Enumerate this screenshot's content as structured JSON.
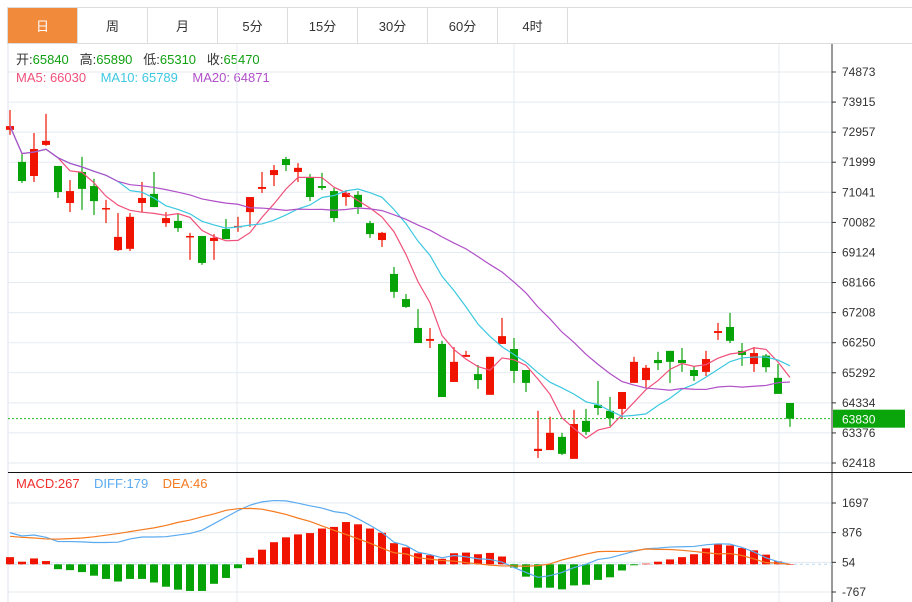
{
  "tabs": [
    {
      "label": "日",
      "active": true
    },
    {
      "label": "周"
    },
    {
      "label": "月"
    },
    {
      "label": "5分"
    },
    {
      "label": "15分"
    },
    {
      "label": "30分"
    },
    {
      "label": "60分"
    },
    {
      "label": "4时"
    }
  ],
  "ohlc_info": {
    "open_label": "开:",
    "open": "65840",
    "high_label": "高:",
    "high": "65890",
    "low_label": "低:",
    "low": "65310",
    "close_label": "收:",
    "close": "65470"
  },
  "ma_info": {
    "ma5": "MA5: 66030",
    "ma10": "MA10: 65789",
    "ma20": "MA20: 64871"
  },
  "macd_info": {
    "macd": "MACD:267",
    "diff": "DIFF:179",
    "dea": "DEA:46"
  },
  "colors": {
    "up": "#f01400",
    "down": "#06a306",
    "ma5": "#f0507a",
    "ma10": "#3cc8e0",
    "ma20": "#b050c8",
    "diff": "#5aaaf0",
    "dea": "#f57a20",
    "accent": "#f28a3c"
  },
  "current_price": "63830",
  "chart_data": [
    {
      "type": "candlestick",
      "title": "K-line (daily)",
      "y_ticks": [
        "74873",
        "73915",
        "72957",
        "71999",
        "71041",
        "70082",
        "69124",
        "68166",
        "67208",
        "66250",
        "65292",
        "64334",
        "63376",
        "62418"
      ],
      "ylim": [
        62418,
        74873
      ],
      "current_price": 63830,
      "candles": [
        [
          73030,
          73660,
          72870,
          73150
        ],
        [
          72010,
          72260,
          71340,
          71400
        ],
        [
          71560,
          72930,
          71370,
          72420
        ],
        [
          72550,
          73540,
          72520,
          72680
        ],
        [
          71880,
          71880,
          70860,
          71050
        ],
        [
          70700,
          71430,
          70410,
          71080
        ],
        [
          71690,
          72170,
          70480,
          71150
        ],
        [
          71240,
          71470,
          70320,
          70760
        ],
        [
          70510,
          70800,
          70060,
          70540
        ],
        [
          69200,
          70380,
          69170,
          69620
        ],
        [
          69240,
          70380,
          69170,
          70260
        ],
        [
          70700,
          71370,
          70410,
          70860
        ],
        [
          70990,
          71690,
          70570,
          70570
        ],
        [
          70060,
          70410,
          69940,
          70220
        ],
        [
          70130,
          70350,
          69780,
          69900
        ],
        [
          69620,
          69750,
          68890,
          69650
        ],
        [
          69650,
          69650,
          68730,
          68790
        ],
        [
          69490,
          69710,
          68890,
          69590
        ],
        [
          69870,
          70190,
          69550,
          69550
        ],
        [
          69940,
          70260,
          69780,
          69970
        ],
        [
          70410,
          70890,
          69940,
          70890
        ],
        [
          71150,
          71690,
          71020,
          71210
        ],
        [
          71590,
          71910,
          71240,
          71750
        ],
        [
          72100,
          72170,
          71720,
          71910
        ],
        [
          71690,
          71970,
          71370,
          71820
        ],
        [
          71500,
          71620,
          70760,
          70890
        ],
        [
          71240,
          71660,
          71110,
          71180
        ],
        [
          71080,
          71180,
          70100,
          70220
        ],
        [
          70890,
          71110,
          70610,
          71020
        ],
        [
          70960,
          71080,
          70350,
          70570
        ],
        [
          70060,
          70130,
          69590,
          69710
        ],
        [
          69520,
          69780,
          69300,
          69750
        ],
        [
          68440,
          68660,
          67680,
          67870
        ],
        [
          67640,
          67800,
          67360,
          67390
        ],
        [
          66720,
          67320,
          66240,
          66240
        ],
        [
          66310,
          66720,
          66080,
          66370
        ],
        [
          66210,
          66310,
          64520,
          64520
        ],
        [
          65000,
          66110,
          65000,
          65640
        ],
        [
          65800,
          65990,
          65800,
          65860
        ],
        [
          65250,
          65540,
          64780,
          65060
        ],
        [
          64590,
          65800,
          64590,
          65800
        ],
        [
          66210,
          67040,
          66210,
          66460
        ],
        [
          66050,
          66400,
          64970,
          65350
        ],
        [
          65380,
          65380,
          64680,
          64970
        ],
        [
          62800,
          64080,
          62580,
          62870
        ],
        [
          62830,
          63890,
          62830,
          63380
        ],
        [
          63250,
          63380,
          62670,
          62710
        ],
        [
          62550,
          64110,
          62550,
          63660
        ],
        [
          63760,
          64140,
          63310,
          63410
        ],
        [
          64270,
          65030,
          63950,
          64170
        ],
        [
          64080,
          64520,
          63600,
          63850
        ],
        [
          64140,
          64680,
          63820,
          64680
        ],
        [
          64970,
          65800,
          64970,
          65640
        ],
        [
          65060,
          65540,
          64810,
          65450
        ],
        [
          65700,
          65960,
          65380,
          65600
        ],
        [
          65990,
          65990,
          64970,
          65640
        ],
        [
          65700,
          66080,
          65320,
          65600
        ],
        [
          65380,
          65510,
          65030,
          65190
        ],
        [
          65320,
          65990,
          65190,
          65730
        ],
        [
          66560,
          66880,
          66340,
          66620
        ],
        [
          66750,
          67200,
          66240,
          66310
        ],
        [
          65990,
          66240,
          65510,
          65860
        ],
        [
          65570,
          66110,
          65320,
          65920
        ],
        [
          65840,
          65890,
          65310,
          65470
        ],
        [
          65130,
          65570,
          64620,
          64620
        ],
        [
          64330,
          64330,
          63570,
          63830
        ]
      ],
      "moving_averages": [
        "MA5",
        "MA10",
        "MA20"
      ]
    },
    {
      "type": "bar+line",
      "title": "MACD",
      "y_ticks": [
        "1697",
        "876",
        "54",
        "-767"
      ],
      "ylim": [
        -767,
        1697
      ],
      "macd": [
        198,
        72,
        162,
        90,
        -135,
        -162,
        -216,
        -315,
        -405,
        -477,
        -405,
        -405,
        -504,
        -621,
        -702,
        -738,
        -738,
        -540,
        -378,
        -108,
        180,
        405,
        612,
        747,
        828,
        864,
        990,
        1035,
        1170,
        1107,
        990,
        873,
        585,
        468,
        306,
        252,
        153,
        306,
        324,
        279,
        315,
        216,
        -90,
        -342,
        -648,
        -648,
        -693,
        -585,
        -567,
        -432,
        -360,
        -171,
        -27,
        18,
        72,
        135,
        198,
        279,
        441,
        558,
        522,
        450,
        387,
        267,
        81,
        0
      ],
      "diff": [
        873,
        783,
        810,
        747,
        630,
        630,
        621,
        603,
        603,
        612,
        702,
        756,
        756,
        765,
        810,
        855,
        945,
        1125,
        1305,
        1485,
        1638,
        1728,
        1764,
        1755,
        1692,
        1620,
        1557,
        1458,
        1413,
        1260,
        1080,
        882,
        612,
        522,
        333,
        270,
        180,
        243,
        207,
        153,
        135,
        63,
        -90,
        -225,
        -360,
        -315,
        -225,
        -90,
        0,
        135,
        180,
        270,
        360,
        432,
        450,
        477,
        486,
        495,
        540,
        567,
        558,
        468,
        342,
        179,
        72,
        0
      ]
    }
  ]
}
